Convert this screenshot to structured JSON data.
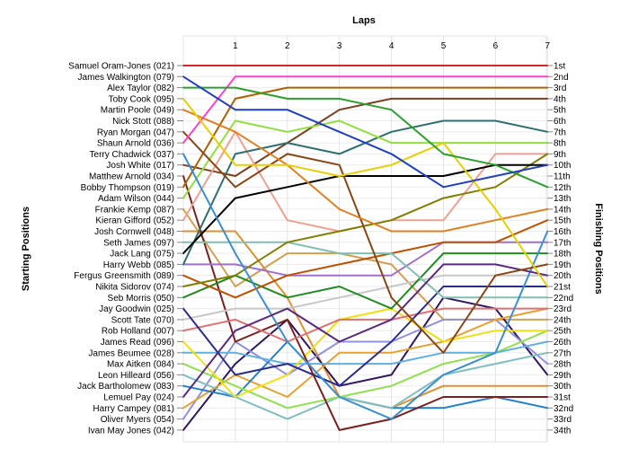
{
  "chart_data": {
    "type": "line",
    "title": "",
    "xlabel": "Laps",
    "ylabel_left": "Starting Positions",
    "ylabel_right": "Finishing Positions",
    "x": [
      0,
      1,
      2,
      3,
      4,
      5,
      6,
      7
    ],
    "x_tick_labels": [
      "1",
      "2",
      "3",
      "4",
      "5",
      "6",
      "7"
    ],
    "ylim": [
      1,
      34
    ],
    "y_axis_inverted": true,
    "grid": true,
    "starting_positions": [
      "Samuel Oram-Jones (021)",
      "James Walkington (079)",
      "Alex Taylor (082)",
      "Toby Cook (095)",
      "Martin Poole (049)",
      "Nick Stott (088)",
      "Ryan Morgan (047)",
      "Shaun Arnold (036)",
      "Terry Chadwick (037)",
      "Josh White (017)",
      "Matthew Arnold (034)",
      "Bobby Thompson (019)",
      "Adam Wilson (044)",
      "Frankie Kemp (087)",
      "Kieran Gifford (052)",
      "Josh Cornwell (048)",
      "Seth James (097)",
      "Jack Lang (075)",
      "Harry Webb (085)",
      "Fergus Greensmith (089)",
      "Nikita Sidorov (074)",
      "Seb Morris (050)",
      "Jay Goodwin (025)",
      "Scott Tate (070)",
      "Rob Holland (007)",
      "James Read (096)",
      "James Beumee (028)",
      "Max Aitken (084)",
      "Leon Hilleard (056)",
      "Jack Bartholomew (083)",
      "Lemuel Pay (024)",
      "Harry Campey (081)",
      "Oliver Myers (054)",
      "Ivan May Jones (042)"
    ],
    "finishing_positions": [
      "1st",
      "2nd",
      "3rd",
      "4th",
      "5th",
      "6th",
      "7th",
      "8th",
      "9th",
      "10th",
      "11th",
      "12th",
      "13th",
      "14th",
      "15th",
      "16th",
      "17th",
      "18th",
      "19th",
      "20th",
      "21st",
      "22nd",
      "23rd",
      "24th",
      "25th",
      "26th",
      "27th",
      "28th",
      "29th",
      "30th",
      "31st",
      "32nd",
      "33rd",
      "34th"
    ],
    "series": [
      {
        "color": "#d62728",
        "values": [
          1,
          1,
          1,
          1,
          1,
          1,
          1,
          1
        ]
      },
      {
        "color": "#1f3fbf",
        "values": [
          2,
          5,
          5,
          7,
          9,
          12,
          11,
          10
        ]
      },
      {
        "color": "#2ca02c",
        "values": [
          3,
          3,
          4,
          4,
          5,
          9,
          10,
          12
        ]
      },
      {
        "color": "#e8d000",
        "values": [
          4,
          10,
          10,
          11,
          10,
          8,
          14,
          21
        ]
      },
      {
        "color": "#ff3fd0",
        "values": [
          8,
          2,
          2,
          2,
          2,
          2,
          2,
          2
        ]
      },
      {
        "color": "#e08020",
        "values": [
          5,
          7,
          10,
          14,
          16,
          16,
          15,
          14
        ]
      },
      {
        "color": "#8b4513",
        "values": [
          7,
          12,
          9,
          10,
          22,
          27,
          20,
          19
        ]
      },
      {
        "color": "#5a2a82",
        "values": [
          31,
          25,
          23,
          26,
          24,
          19,
          19,
          20
        ]
      },
      {
        "color": "#3a8fd0",
        "values": [
          9,
          18,
          26,
          31,
          33,
          29,
          27,
          16
        ]
      },
      {
        "color": "#000000",
        "values": [
          18,
          13,
          12,
          11,
          11,
          11,
          10,
          10
        ]
      },
      {
        "color": "#b06000",
        "values": [
          12,
          4,
          3,
          3,
          3,
          3,
          3,
          3
        ]
      },
      {
        "color": "#8fe03a",
        "values": [
          13,
          6,
          7,
          6,
          8,
          8,
          8,
          8
        ]
      },
      {
        "color": "#2f6f6f",
        "values": [
          19,
          9,
          8,
          9,
          7,
          6,
          6,
          7
        ]
      },
      {
        "color": "#808000",
        "values": [
          21,
          20,
          17,
          16,
          15,
          13,
          12,
          9
        ]
      },
      {
        "color": "#f0a090",
        "values": [
          15,
          7,
          15,
          16,
          15,
          15,
          9,
          9
        ]
      },
      {
        "color": "#7f3f1f",
        "values": [
          10,
          11,
          8,
          5,
          4,
          4,
          4,
          4
        ]
      },
      {
        "color": "#80c0b0",
        "values": [
          17,
          17,
          17,
          18,
          18,
          22,
          22,
          22
        ]
      },
      {
        "color": "#c05000",
        "values": [
          20,
          22,
          20,
          19,
          18,
          17,
          17,
          15
        ]
      },
      {
        "color": "#a070d0",
        "values": [
          19,
          19,
          20,
          20,
          20,
          17,
          17,
          17
        ]
      },
      {
        "color": "#228b22",
        "values": [
          22,
          20,
          22,
          21,
          23,
          18,
          18,
          18
        ]
      },
      {
        "color": "#2b2b8b",
        "values": [
          23,
          29,
          28,
          30,
          26,
          21,
          21,
          21
        ]
      },
      {
        "color": "#c8c8c8",
        "values": [
          24,
          23,
          23,
          22,
          21,
          20,
          20,
          20
        ]
      },
      {
        "color": "#e07070",
        "values": [
          25,
          24,
          26,
          24,
          24,
          23,
          23,
          23
        ]
      },
      {
        "color": "#7b1f1f",
        "values": [
          11,
          26,
          24,
          34,
          33,
          31,
          31,
          31
        ]
      },
      {
        "color": "#f0e010",
        "values": [
          26,
          31,
          29,
          24,
          23,
          26,
          25,
          25
        ]
      },
      {
        "color": "#60b0e0",
        "values": [
          27,
          27,
          28,
          28,
          28,
          27,
          27,
          26
        ]
      },
      {
        "color": "#90e050",
        "values": [
          28,
          30,
          32,
          31,
          30,
          28,
          27,
          25
        ]
      },
      {
        "color": "#7fbfbf",
        "values": [
          29,
          31,
          33,
          31,
          32,
          29,
          28,
          27
        ]
      },
      {
        "color": "#1f7fd0",
        "values": [
          30,
          31,
          26,
          31,
          32,
          32,
          31,
          32
        ]
      },
      {
        "color": "#e8a030",
        "values": [
          32,
          29,
          31,
          27,
          27,
          26,
          24,
          23
        ]
      },
      {
        "color": "#9090e0",
        "values": [
          33,
          26,
          29,
          26,
          26,
          24,
          24,
          28
        ]
      },
      {
        "color": "#301860",
        "values": [
          34,
          28,
          24,
          30,
          29,
          22,
          23,
          29
        ]
      },
      {
        "color": "#e09030",
        "values": [
          16,
          16,
          22,
          31,
          32,
          30,
          30,
          30
        ]
      },
      {
        "color": "#d2a050",
        "values": [
          14,
          21,
          18,
          18,
          19,
          24,
          24,
          24
        ]
      }
    ]
  }
}
